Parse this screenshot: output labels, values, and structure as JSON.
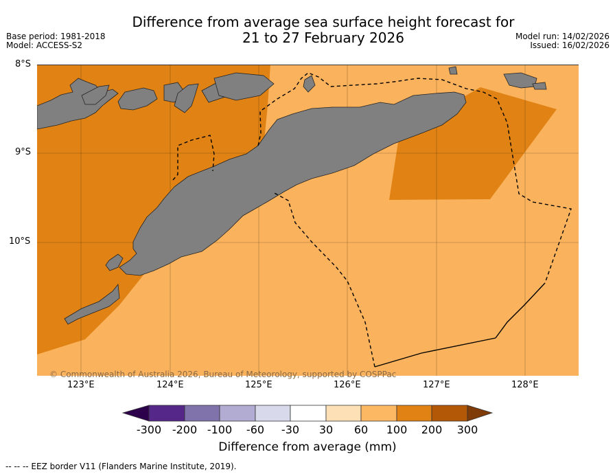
{
  "header": {
    "title_line1": "Difference from average sea surface height forecast for",
    "title_line2": "21 to 27 February 2026",
    "base_period": "Base period: 1981-2018",
    "model": "Model: ACCESS-S2",
    "model_run": "Model run: 14/02/2026",
    "issued": "Issued: 16/02/2026"
  },
  "map": {
    "lat_labels": [
      "8°S",
      "9°S",
      "10°S"
    ],
    "lon_labels": [
      "123°E",
      "124°E",
      "125°E",
      "126°E",
      "127°E",
      "128°E"
    ],
    "copyright": "© Commonwealth of Australia 2026, Bureau of Meteorology, supported by COSPPac",
    "colors": {
      "land": "#808080",
      "anom_30_60": "#fcd9a9",
      "anom_60_100": "#fab25c",
      "anom_100_200": "#e08314",
      "anom_200_300": "#b35806"
    }
  },
  "colorbar": {
    "colors": [
      "#2d004b",
      "#542788",
      "#8073ac",
      "#b2abd2",
      "#d8daeb",
      "#ffffff",
      "#fee0b6",
      "#fdb863",
      "#e08214",
      "#b35806",
      "#7f3b08"
    ],
    "labels": [
      "-300",
      "-200",
      "-100",
      "-60",
      "-30",
      "30",
      "60",
      "100",
      "200",
      "300"
    ],
    "title": "Difference from average (mm)"
  },
  "footnote": "--  --  -- EEZ border V11 (Flanders Marine Institute, 2019)."
}
